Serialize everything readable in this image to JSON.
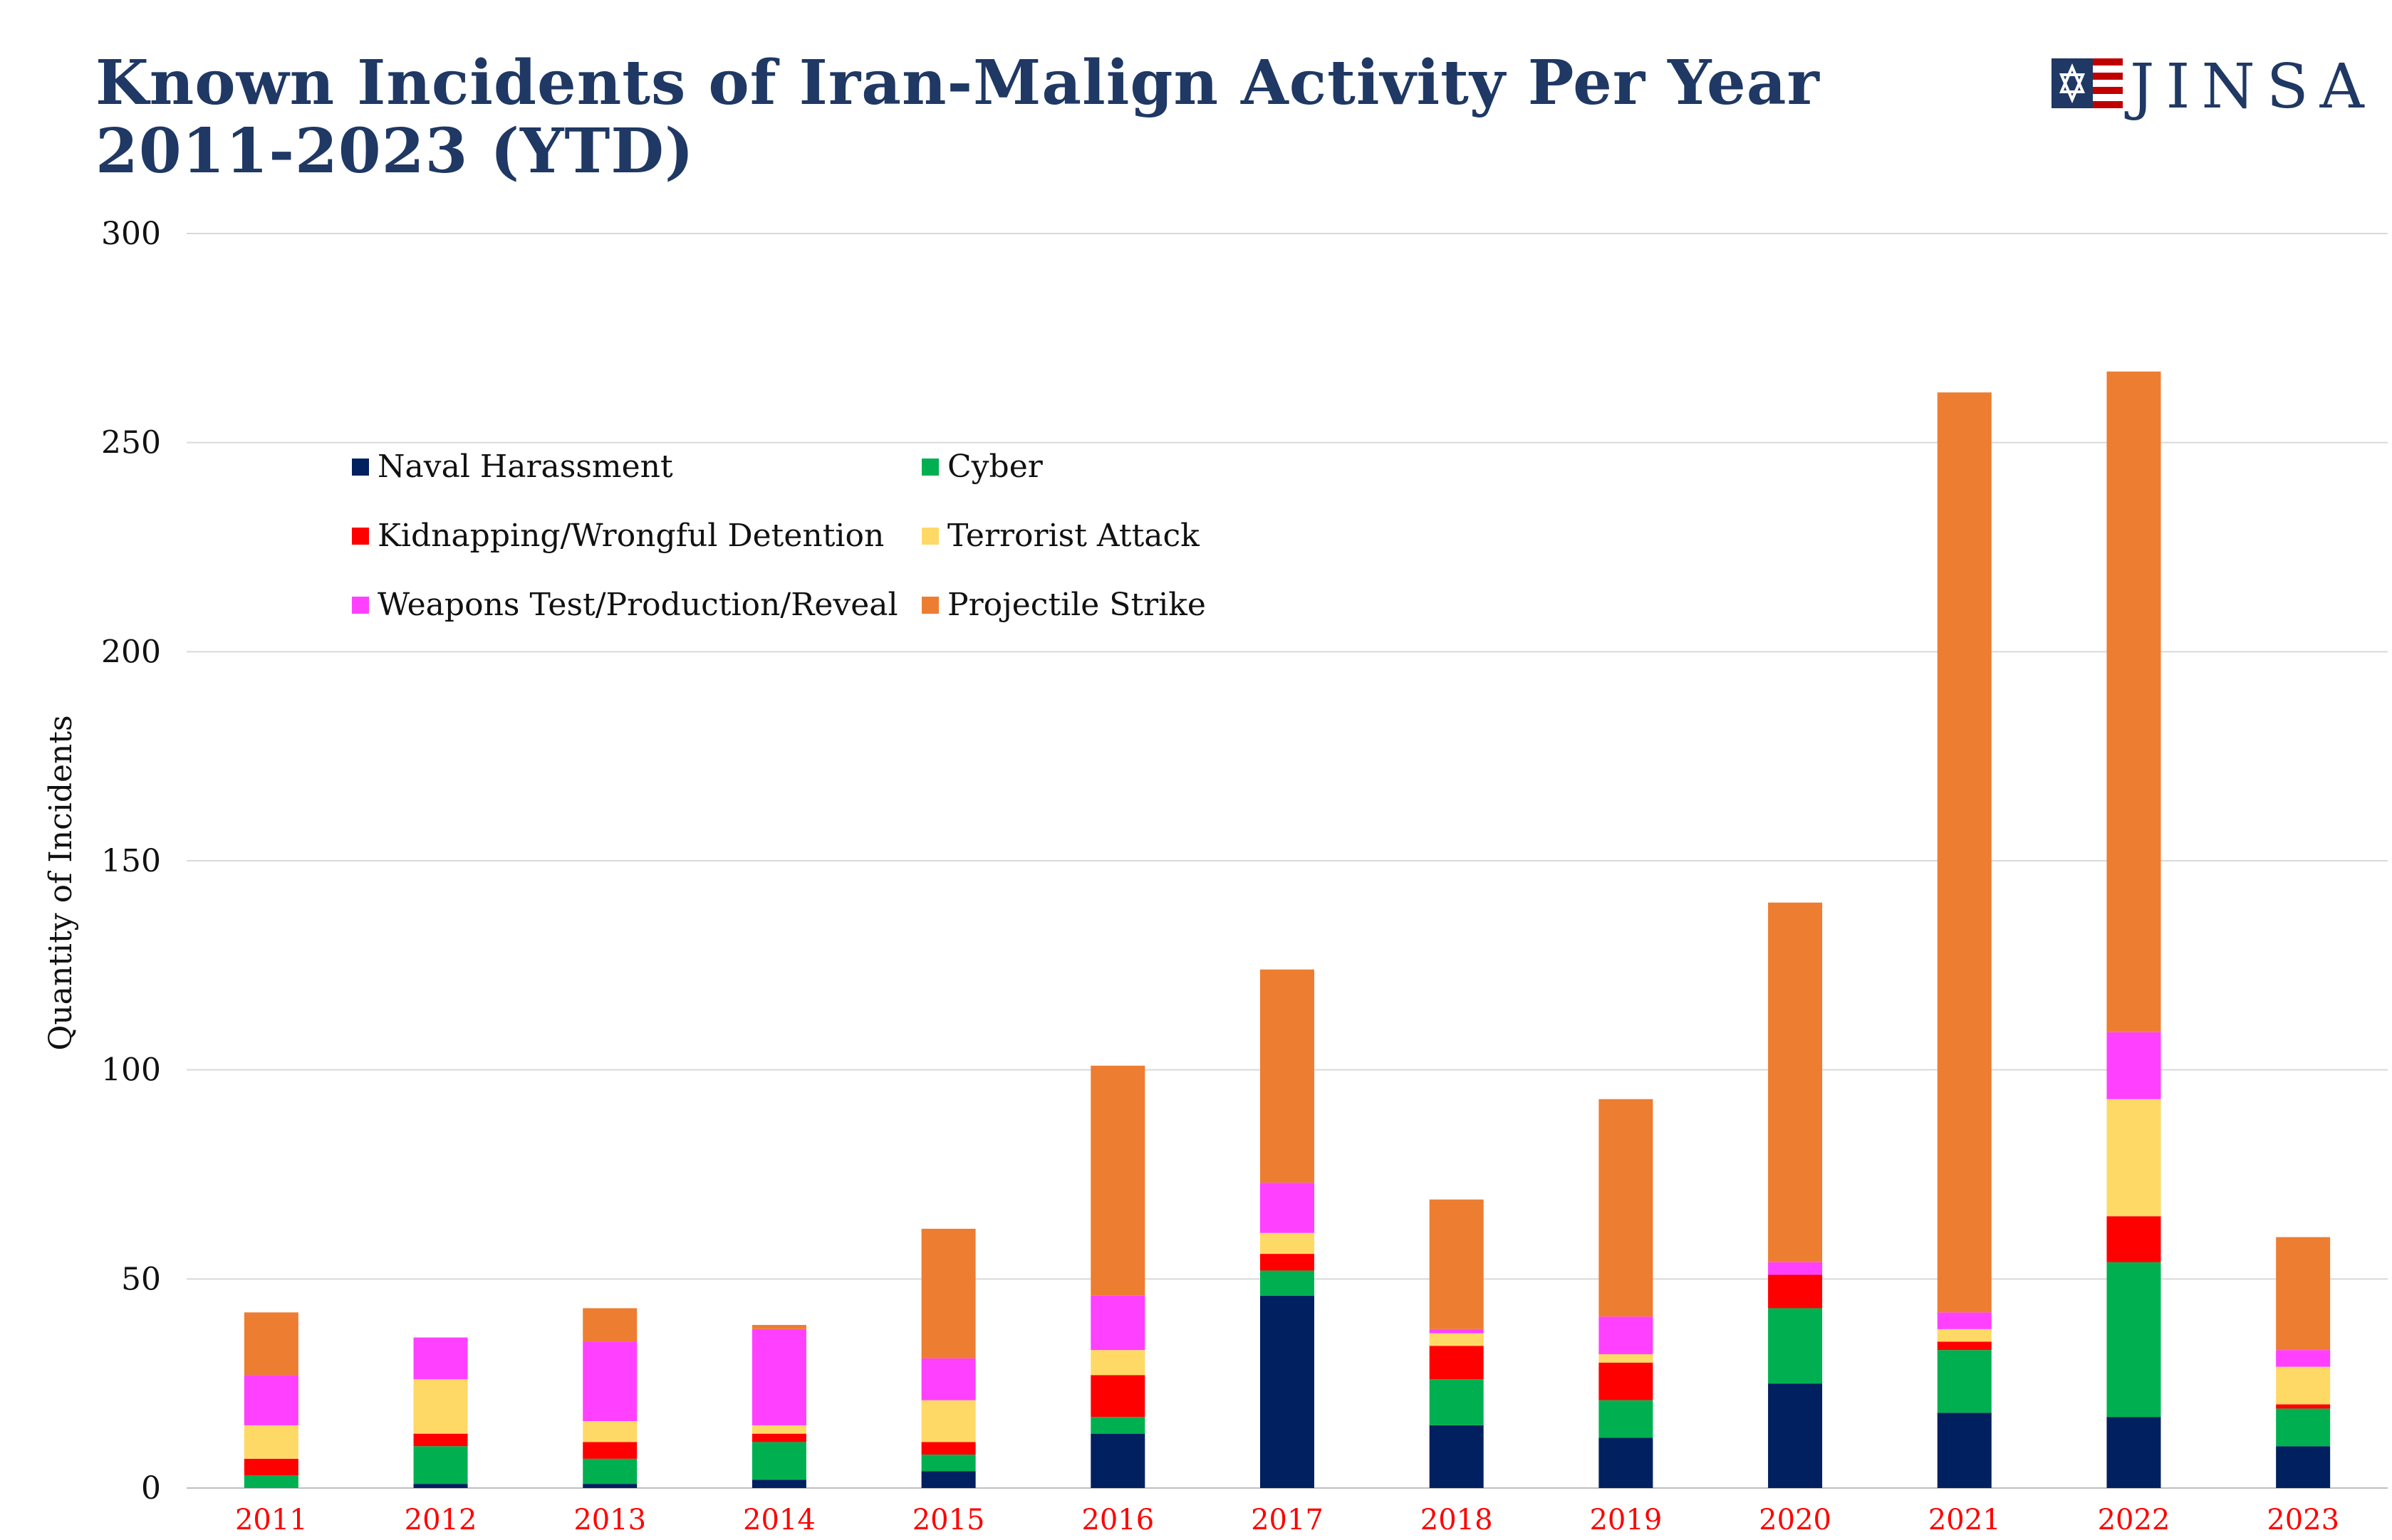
{
  "header": {
    "title_line1": "Known Incidents of Iran-Malign Activity Per Year",
    "title_line2": "2011-2023 (YTD)",
    "logo_text": "JINSA"
  },
  "colors": {
    "title": "#1f3864",
    "year_labels": "#ff0000",
    "naval": "#002060",
    "cyber": "#00b050",
    "kidnapping": "#ff0000",
    "terrorist": "#ffd966",
    "weapons": "#ff40ff",
    "projectile": "#ed7d31"
  },
  "chart_data": {
    "type": "bar",
    "stacked": true,
    "title": "Known Incidents of Iran-Malign Activity Per Year 2011-2023 (YTD)",
    "ylabel": "Quantity of Incidents",
    "xlabel": "",
    "ylim": [
      0,
      300
    ],
    "yticks": [
      0,
      50,
      100,
      150,
      200,
      250,
      300
    ],
    "grid": true,
    "legend_position": "upper-left",
    "categories": [
      "2011",
      "2012",
      "2013",
      "2014",
      "2015",
      "2016",
      "2017",
      "2018",
      "2019",
      "2020",
      "2021",
      "2022",
      "2023"
    ],
    "series": [
      {
        "name": "Naval Harassment",
        "color": "#002060",
        "values": [
          0,
          1,
          1,
          2,
          4,
          13,
          46,
          15,
          12,
          25,
          18,
          17,
          10
        ]
      },
      {
        "name": "Cyber",
        "color": "#00b050",
        "values": [
          3,
          9,
          6,
          9,
          4,
          4,
          6,
          11,
          9,
          18,
          15,
          37,
          9
        ]
      },
      {
        "name": "Kidnapping/Wrongful Detention",
        "color": "#ff0000",
        "values": [
          4,
          3,
          4,
          2,
          3,
          10,
          4,
          8,
          9,
          8,
          2,
          11,
          1
        ]
      },
      {
        "name": "Terrorist Attack",
        "color": "#ffd966",
        "values": [
          8,
          13,
          5,
          2,
          10,
          6,
          5,
          3,
          2,
          0,
          3,
          28,
          9
        ]
      },
      {
        "name": "Weapons Test/Production/Reveal",
        "color": "#ff40ff",
        "values": [
          12,
          10,
          19,
          23,
          10,
          13,
          12,
          1,
          9,
          3,
          4,
          16,
          4
        ]
      },
      {
        "name": "Projectile Strike",
        "color": "#ed7d31",
        "values": [
          15,
          0,
          8,
          1,
          31,
          55,
          51,
          31,
          52,
          86,
          220,
          158,
          27
        ]
      }
    ]
  }
}
